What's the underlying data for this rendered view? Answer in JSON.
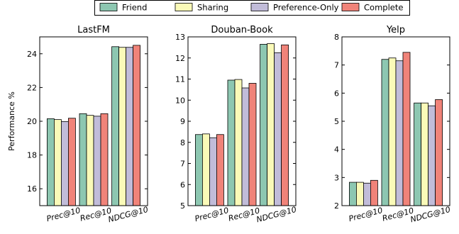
{
  "chart_data": [
    {
      "type": "bar",
      "title": "LastFM",
      "ylabel": "Performance %",
      "categories": [
        "Prec@10",
        "Rec@10",
        "NDCG@10"
      ],
      "ylim": [
        15,
        25
      ],
      "yticks": [
        16,
        18,
        20,
        22,
        24
      ],
      "series": [
        {
          "name": "Friend",
          "values": [
            20.15,
            20.45,
            24.42
          ]
        },
        {
          "name": "Sharing",
          "values": [
            20.1,
            20.35,
            24.38
          ]
        },
        {
          "name": "Preference-Only",
          "values": [
            19.98,
            20.3,
            24.38
          ]
        },
        {
          "name": "Complete",
          "values": [
            20.18,
            20.45,
            24.5
          ]
        }
      ]
    },
    {
      "type": "bar",
      "title": "Douban-Book",
      "categories": [
        "Prec@10",
        "Rec@10",
        "NDCG@10"
      ],
      "ylim": [
        5,
        13
      ],
      "yticks": [
        5,
        6,
        7,
        8,
        9,
        10,
        11,
        12,
        13
      ],
      "series": [
        {
          "name": "Friend",
          "values": [
            8.37,
            10.95,
            12.65
          ]
        },
        {
          "name": "Sharing",
          "values": [
            8.4,
            10.98,
            12.68
          ]
        },
        {
          "name": "Preference-Only",
          "values": [
            8.22,
            10.58,
            12.25
          ]
        },
        {
          "name": "Complete",
          "values": [
            8.37,
            10.8,
            12.62
          ]
        }
      ]
    },
    {
      "type": "bar",
      "title": "Yelp",
      "categories": [
        "Prec@10",
        "Rec@10",
        "NDCG@10"
      ],
      "ylim": [
        2,
        8
      ],
      "yticks": [
        2,
        3,
        4,
        5,
        6,
        7,
        8
      ],
      "series": [
        {
          "name": "Friend",
          "values": [
            2.83,
            7.2,
            5.65
          ]
        },
        {
          "name": "Sharing",
          "values": [
            2.83,
            7.25,
            5.65
          ]
        },
        {
          "name": "Preference-Only",
          "values": [
            2.8,
            7.15,
            5.55
          ]
        },
        {
          "name": "Complete",
          "values": [
            2.9,
            7.45,
            5.77
          ]
        }
      ]
    }
  ],
  "legend": {
    "items": [
      "Friend",
      "Sharing",
      "Preference-Only",
      "Complete"
    ],
    "colors": [
      "#8dc7b1",
      "#fafab8",
      "#c1bcd9",
      "#f08379"
    ],
    "position": "top-center"
  }
}
